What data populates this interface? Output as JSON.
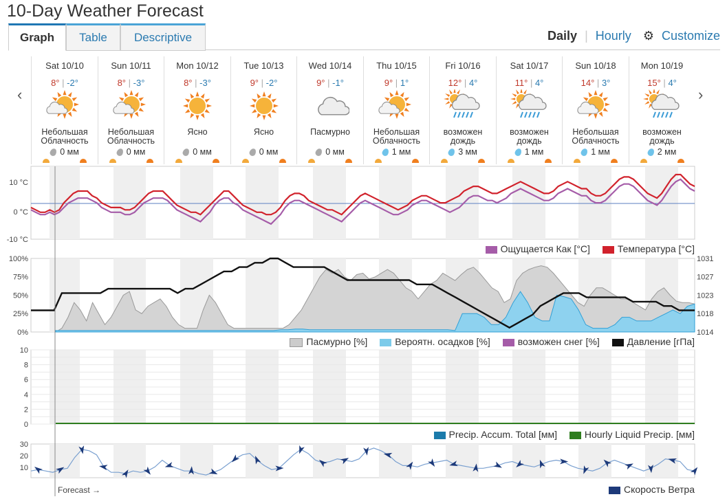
{
  "title": "10-Day Weather Forecast",
  "tabs": [
    {
      "label": "Graph",
      "active": true
    },
    {
      "label": "Table",
      "active": false
    },
    {
      "label": "Descriptive",
      "active": false
    }
  ],
  "view": {
    "daily": "Daily",
    "hourly": "Hourly",
    "customize": "Customize",
    "separator": "|"
  },
  "days": [
    {
      "date": "Sat 10/10",
      "hi": "8°",
      "lo": "-2°",
      "cond": "Небольшая Облачность",
      "precip": "0 мм",
      "icon": "partly-cloudy-icon",
      "drop": "gray"
    },
    {
      "date": "Sun 10/11",
      "hi": "8°",
      "lo": "-3°",
      "cond": "Небольшая Облачность",
      "precip": "0 мм",
      "icon": "partly-cloudy-icon",
      "drop": "gray"
    },
    {
      "date": "Mon 10/12",
      "hi": "8°",
      "lo": "-3°",
      "cond": "Ясно",
      "precip": "0 мм",
      "icon": "sun-icon",
      "drop": "gray"
    },
    {
      "date": "Tue 10/13",
      "hi": "9°",
      "lo": "-2°",
      "cond": "Ясно",
      "precip": "0 мм",
      "icon": "sun-icon",
      "drop": "gray"
    },
    {
      "date": "Wed 10/14",
      "hi": "9°",
      "lo": "-1°",
      "cond": "Пасмурно",
      "precip": "0 мм",
      "icon": "cloud-icon",
      "drop": "gray"
    },
    {
      "date": "Thu 10/15",
      "hi": "9°",
      "lo": "1°",
      "cond": "Небольшая Облачность",
      "precip": "1 мм",
      "icon": "partly-cloudy-icon",
      "drop": "blue"
    },
    {
      "date": "Fri 10/16",
      "hi": "12°",
      "lo": "4°",
      "cond": "возможен дождь",
      "precip": "3 мм",
      "icon": "rain-icon",
      "drop": "blue"
    },
    {
      "date": "Sat 10/17",
      "hi": "11°",
      "lo": "4°",
      "cond": "возможен дождь",
      "precip": "1 мм",
      "icon": "rain-icon",
      "drop": "blue"
    },
    {
      "date": "Sun 10/18",
      "hi": "14°",
      "lo": "3°",
      "cond": "Небольшая Облачность",
      "precip": "1 мм",
      "icon": "partly-cloudy-icon",
      "drop": "blue"
    },
    {
      "date": "Mon 10/19",
      "hi": "15°",
      "lo": "4°",
      "cond": "возможен дождь",
      "precip": "2 мм",
      "icon": "rain-icon",
      "drop": "blue"
    }
  ],
  "forecast_label": "Forecast →",
  "chart_data": [
    {
      "type": "line",
      "yticks": [
        "10 °C",
        "0 °C",
        "-10 °C"
      ],
      "ylim": [
        -10,
        10
      ],
      "series": [
        {
          "name": "Ощущается Как [°C]",
          "color": "#a55ca8",
          "values": [
            -1,
            -2,
            -3,
            -3,
            -2,
            -3,
            -2,
            0,
            2,
            3,
            4,
            4,
            4,
            3,
            2,
            0,
            -1,
            -2,
            -2,
            -2,
            -3,
            -3,
            -2,
            0,
            2,
            3,
            4,
            4,
            4,
            3,
            1,
            -1,
            -2,
            -3,
            -4,
            -5,
            -6,
            -4,
            -2,
            1,
            3,
            4,
            4,
            2,
            1,
            -1,
            -2,
            -3,
            -4,
            -5,
            -6,
            -7,
            -5,
            -3,
            0,
            2,
            3,
            3,
            2,
            1,
            0,
            -1,
            -2,
            -3,
            -4,
            -5,
            -6,
            -4,
            -2,
            0,
            2,
            3,
            2,
            1,
            0,
            -1,
            -2,
            -3,
            -3,
            -2,
            -1,
            1,
            2,
            3,
            3,
            2,
            1,
            0,
            -1,
            -2,
            -1,
            0,
            2,
            4,
            5,
            5,
            4,
            3,
            3,
            2,
            3,
            4,
            6,
            7,
            8,
            7,
            6,
            5,
            4,
            3,
            3,
            4,
            6,
            7,
            8,
            7,
            6,
            5,
            5,
            3,
            2,
            2,
            3,
            5,
            7,
            9,
            10,
            10,
            9,
            7,
            5,
            3,
            2,
            1,
            3,
            6,
            9,
            11,
            12,
            10,
            8,
            7
          ]
        },
        {
          "name": "Температура [°C]",
          "color": "#d1222c",
          "values": [
            0,
            -1,
            -2,
            -2,
            -1,
            -2,
            -1,
            2,
            4,
            6,
            7,
            7,
            7,
            5,
            4,
            2,
            1,
            0,
            0,
            0,
            -1,
            -1,
            0,
            2,
            4,
            6,
            7,
            7,
            7,
            5,
            3,
            1,
            0,
            -1,
            -2,
            -2,
            -3,
            -1,
            1,
            3,
            5,
            7,
            7,
            5,
            3,
            1,
            0,
            -1,
            -2,
            -2,
            -3,
            -3,
            -2,
            0,
            3,
            5,
            6,
            6,
            5,
            3,
            2,
            1,
            0,
            -1,
            -1,
            -2,
            -3,
            -1,
            1,
            3,
            5,
            6,
            5,
            4,
            3,
            2,
            1,
            0,
            -1,
            0,
            1,
            3,
            4,
            5,
            5,
            4,
            3,
            2,
            2,
            3,
            4,
            5,
            7,
            8,
            9,
            9,
            8,
            7,
            6,
            6,
            7,
            8,
            9,
            10,
            11,
            10,
            9,
            8,
            7,
            6,
            6,
            7,
            9,
            10,
            11,
            10,
            9,
            8,
            8,
            6,
            5,
            5,
            6,
            8,
            10,
            12,
            13,
            13,
            12,
            10,
            8,
            6,
            5,
            4,
            6,
            9,
            12,
            14,
            14,
            12,
            10,
            9
          ]
        }
      ]
    },
    {
      "type": "area",
      "yticks_left": [
        "100%",
        "75%",
        "50%",
        "25%",
        "0%"
      ],
      "yticks_right": [
        "1031",
        "1027",
        "1023",
        "1018",
        "1014"
      ],
      "ylim_left": [
        0,
        100
      ],
      "ylim_right": [
        1014,
        1031
      ],
      "series": [
        {
          "name": "Пасмурно [%]",
          "color": "#cccccc",
          "values": [
            0,
            5,
            20,
            40,
            30,
            15,
            40,
            25,
            10,
            20,
            35,
            50,
            55,
            30,
            25,
            35,
            40,
            45,
            35,
            20,
            10,
            5,
            5,
            5,
            30,
            50,
            40,
            25,
            10,
            5,
            5,
            5,
            5,
            5,
            5,
            5,
            5,
            5,
            10,
            20,
            30,
            45,
            60,
            75,
            85,
            80,
            85,
            75,
            70,
            78,
            80,
            72,
            75,
            80,
            85,
            80,
            70,
            60,
            55,
            45,
            55,
            65,
            70,
            80,
            75,
            70,
            78,
            85,
            88,
            80,
            70,
            60,
            55,
            40,
            45,
            70,
            80,
            85,
            88,
            90,
            88,
            80,
            70,
            60,
            50,
            40,
            35,
            50,
            60,
            60,
            55,
            50,
            45,
            45,
            40,
            35,
            30,
            45,
            55,
            60,
            50,
            42,
            40,
            40,
            38
          ]
        },
        {
          "name": "Вероятн. осадков [%]",
          "color": "#7ccbea",
          "values": [
            2,
            2,
            2,
            2,
            2,
            2,
            2,
            2,
            2,
            2,
            2,
            2,
            2,
            2,
            2,
            2,
            2,
            2,
            2,
            2,
            2,
            2,
            2,
            2,
            2,
            2,
            2,
            2,
            2,
            2,
            2,
            3,
            3,
            4,
            4,
            3,
            3,
            3,
            3,
            3,
            3,
            3,
            3,
            3,
            3,
            3,
            3,
            3,
            3,
            3,
            3,
            3,
            3,
            3,
            3,
            2,
            25,
            25,
            25,
            20,
            10,
            10,
            20,
            40,
            55,
            40,
            20,
            15,
            15,
            50,
            48,
            45,
            30,
            10,
            5,
            5,
            5,
            10,
            20,
            20,
            15,
            15,
            15,
            20,
            25,
            30,
            25,
            35,
            38
          ]
        },
        {
          "name": "возможен снег [%]",
          "color": "#a55ca8",
          "values": []
        },
        {
          "name": "Давление [гПа]",
          "color": "#111111",
          "axis": "right",
          "values": [
            1019,
            1019,
            1019,
            1019,
            1023,
            1023,
            1023,
            1023,
            1023,
            1023,
            1024,
            1024,
            1024,
            1024,
            1024,
            1024,
            1024,
            1024,
            1024,
            1023,
            1024,
            1024,
            1025,
            1026,
            1027,
            1028,
            1028,
            1029,
            1029,
            1030,
            1030,
            1031,
            1031,
            1030,
            1029,
            1029,
            1029,
            1029,
            1029,
            1028,
            1027,
            1026,
            1026,
            1026,
            1026,
            1026,
            1026,
            1026,
            1026,
            1026,
            1025,
            1025,
            1025,
            1024,
            1023,
            1022,
            1021,
            1020,
            1019,
            1018,
            1017,
            1016,
            1015,
            1016,
            1017,
            1018,
            1020,
            1021,
            1022,
            1023,
            1023,
            1023,
            1022,
            1022,
            1022,
            1022,
            1022,
            1022,
            1021,
            1021,
            1021,
            1021,
            1020,
            1020,
            1019,
            1019,
            1019
          ]
        }
      ]
    },
    {
      "type": "area",
      "yticks": [
        "10",
        "8",
        "6",
        "4",
        "2",
        "0"
      ],
      "ylim": [
        0,
        10
      ],
      "series": [
        {
          "name": "Precip. Accum. Total [мм]",
          "color": "#1b7bab",
          "values": []
        },
        {
          "name": "Hourly Liquid Precip. [мм]",
          "color": "#2e7d1e",
          "values": [
            0
          ]
        }
      ]
    },
    {
      "type": "line",
      "yticks": [
        "30",
        "20",
        "10"
      ],
      "ylim": [
        5,
        30
      ],
      "series": [
        {
          "name": "Скорость Ветра",
          "color": "#1d3a7a",
          "values": [
            10,
            11,
            10,
            9,
            11,
            12,
            20,
            26,
            25,
            22,
            13,
            9,
            9,
            8,
            10,
            9,
            10,
            13,
            18,
            14,
            12,
            10,
            10,
            8,
            7,
            9,
            11,
            15,
            19,
            22,
            23,
            18,
            14,
            11,
            12,
            17,
            22,
            26,
            23,
            18,
            16,
            17,
            19,
            18,
            17,
            19,
            25,
            27,
            25,
            22,
            17,
            14,
            14,
            13,
            15,
            16,
            17,
            18,
            15,
            14,
            13,
            12,
            12,
            13,
            14,
            16,
            17,
            15,
            14,
            13,
            15,
            17,
            18,
            17,
            14,
            12,
            11,
            10,
            12,
            16,
            18,
            16,
            14,
            12,
            10,
            12,
            15,
            19,
            18,
            17,
            11,
            10
          ]
        }
      ]
    }
  ]
}
